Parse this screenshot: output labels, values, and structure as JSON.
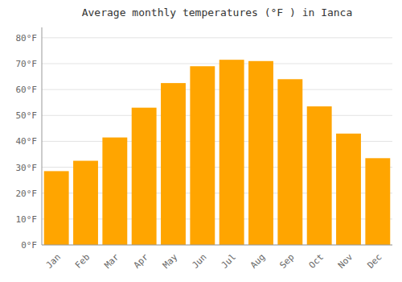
{
  "chart_data": {
    "type": "bar",
    "title": "Average monthly temperatures (°F ) in Ianca",
    "categories": [
      "Jan",
      "Feb",
      "Mar",
      "Apr",
      "May",
      "Jun",
      "Jul",
      "Aug",
      "Sep",
      "Oct",
      "Nov",
      "Dec"
    ],
    "values": [
      28.5,
      32.5,
      41.5,
      53.0,
      62.5,
      69.0,
      71.5,
      71.0,
      64.0,
      53.5,
      43.0,
      33.5
    ],
    "color": "#FFA500",
    "ylim": [
      0,
      84
    ],
    "yticks": [
      {
        "value": 0,
        "label": "0°F"
      },
      {
        "value": 10,
        "label": "10°F"
      },
      {
        "value": 20,
        "label": "20°F"
      },
      {
        "value": 30,
        "label": "30°F"
      },
      {
        "value": 40,
        "label": "40°F"
      },
      {
        "value": 50,
        "label": "50°F"
      },
      {
        "value": 60,
        "label": "60°F"
      },
      {
        "value": 70,
        "label": "70°F"
      },
      {
        "value": 80,
        "label": "80°F"
      }
    ],
    "grid": true
  }
}
